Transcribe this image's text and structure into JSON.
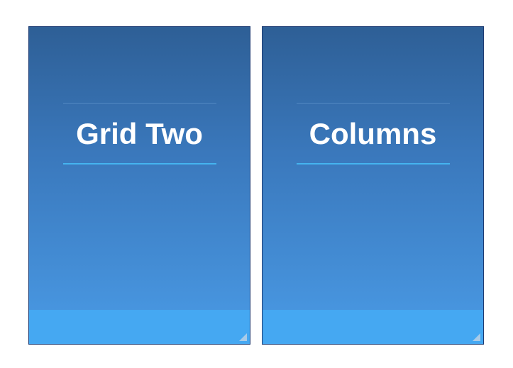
{
  "panels": [
    {
      "title": "Grid Two"
    },
    {
      "title": "Columns"
    }
  ],
  "colors": {
    "gradient_top": "#2e5f96",
    "gradient_bottom": "#4a9be6",
    "footer": "#45a8f2",
    "accent_rule": "#45b4ef",
    "border": "#1c3a72",
    "text": "#ffffff"
  },
  "icons": {
    "resize": "resize-grip-icon"
  }
}
